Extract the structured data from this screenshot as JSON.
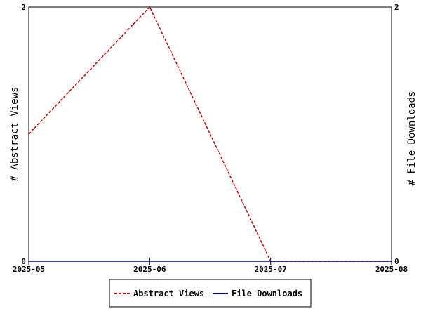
{
  "chart_data": {
    "type": "line",
    "categories": [
      "2025-05",
      "2025-06",
      "2025-07",
      "2025-08"
    ],
    "series": [
      {
        "name": "Abstract Views",
        "axis": "left",
        "values": [
          1,
          2,
          0,
          0
        ],
        "color": "#cc0000",
        "dash": true
      },
      {
        "name": "File Downloads",
        "axis": "right",
        "values": [
          0,
          0,
          0,
          0
        ],
        "color": "#000099",
        "dash": false
      }
    ],
    "ylabel_left": "# Abstract Views",
    "ylabel_right": "# File Downloads",
    "ylim_left": [
      0,
      2
    ],
    "ylim_right": [
      0,
      2
    ],
    "yticks_left": [
      "0",
      "2"
    ],
    "yticks_right": [
      "0",
      "2"
    ],
    "grid": false,
    "legend_position": "bottom"
  }
}
